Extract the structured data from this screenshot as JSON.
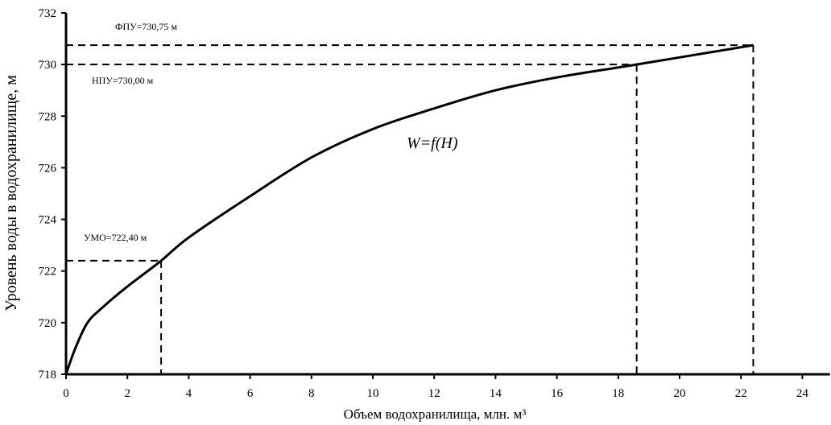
{
  "chart_data": {
    "type": "line",
    "title": "",
    "xlabel": "Объем водохранилища, млн. м³",
    "ylabel": "Уровень воды в водохранилище, м",
    "xlim": [
      0,
      24.9
    ],
    "ylim": [
      718,
      732
    ],
    "xticks": [
      0,
      2,
      4,
      6,
      8,
      10,
      12,
      14,
      16,
      18,
      20,
      22,
      24
    ],
    "yticks": [
      718,
      720,
      722,
      724,
      726,
      728,
      730,
      732
    ],
    "grid": false,
    "series": [
      {
        "name": "W=f(H)",
        "x": [
          0,
          0.3,
          0.7,
          1.2,
          2,
          3.1,
          4,
          6,
          8,
          10,
          12,
          14,
          16,
          18.6,
          22.4
        ],
        "y": [
          718,
          719,
          720,
          720.6,
          721.4,
          722.4,
          723.3,
          724.9,
          726.4,
          727.5,
          728.3,
          729.0,
          729.5,
          730.0,
          730.75
        ]
      }
    ],
    "curve_label": "W=f(H)",
    "reference_levels": [
      {
        "label": "ФПУ=730,75 м",
        "level": 730.75,
        "volume": 22.4
      },
      {
        "label": "НПУ=730,00 м",
        "level": 730.0,
        "volume": 18.6
      },
      {
        "label": "УМО=722,40 м",
        "level": 722.4,
        "volume": 3.1
      }
    ]
  }
}
